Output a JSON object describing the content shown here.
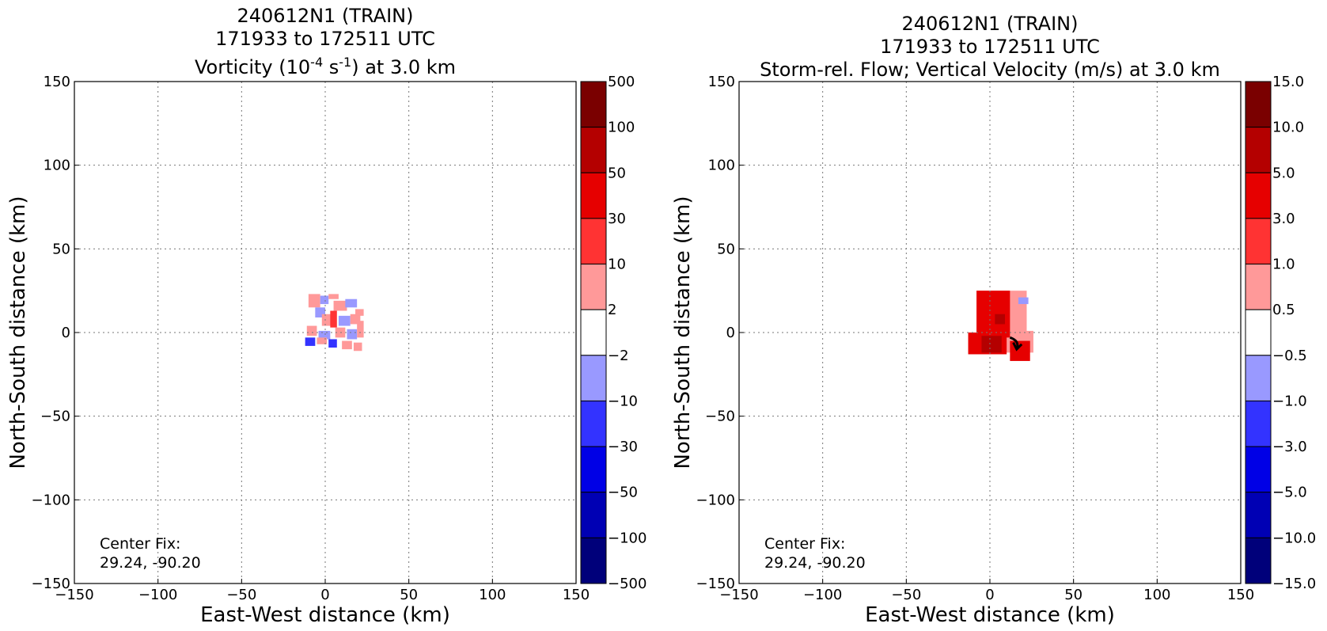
{
  "chart_data": [
    {
      "type": "heatmap",
      "title": "240612N1 (TRAIN)",
      "subtitle": "171933 to 172511 UTC",
      "field_title": {
        "prefix": "Vorticity (10",
        "sup1": "-4",
        "mid": " s",
        "sup2": "-1",
        "suffix": ") at 3.0 km"
      },
      "xlabel": "East-West distance (km)",
      "ylabel": "North-South distance (km)",
      "xlim": [
        -150,
        150
      ],
      "ylim": [
        -150,
        150
      ],
      "x_ticks": [
        "−150",
        "−100",
        "−50",
        "0",
        "50",
        "100",
        "150"
      ],
      "y_ticks": [
        "150",
        "100",
        "50",
        "0",
        "−50",
        "−100",
        "−150"
      ],
      "grid": true,
      "annotation": [
        "Center Fix:",
        "29.24, -90.20"
      ],
      "colorbar": {
        "labels": [
          "500",
          "100",
          "50",
          "30",
          "10",
          "2",
          "−2",
          "−10",
          "−30",
          "−50",
          "−100",
          "−500"
        ],
        "colors": [
          "#7a0000",
          "#b40000",
          "#e60000",
          "#ff3333",
          "#ff9999",
          "#ffffff",
          "#9999ff",
          "#3333ff",
          "#0000e6",
          "#0000b4",
          "#00007a"
        ]
      },
      "field_patches": [
        {
          "x": -10,
          "y": 15,
          "w": 7,
          "h": 8,
          "level": "2"
        },
        {
          "x": -6,
          "y": 9,
          "w": 6,
          "h": 6,
          "level": "-2"
        },
        {
          "x": -3,
          "y": 17,
          "w": 5,
          "h": 5,
          "level": "-2"
        },
        {
          "x": 2,
          "y": 20,
          "w": 6,
          "h": 3,
          "level": "2"
        },
        {
          "x": 5,
          "y": 13,
          "w": 8,
          "h": 6,
          "level": "2"
        },
        {
          "x": 12,
          "y": 15,
          "w": 7,
          "h": 5,
          "level": "-2"
        },
        {
          "x": -2,
          "y": 4,
          "w": 6,
          "h": 7,
          "level": "2"
        },
        {
          "x": 3,
          "y": 3,
          "w": 4,
          "h": 10,
          "level": "10"
        },
        {
          "x": 8,
          "y": 4,
          "w": 7,
          "h": 6,
          "level": "-2"
        },
        {
          "x": 15,
          "y": 5,
          "w": 6,
          "h": 6,
          "level": "2"
        },
        {
          "x": 18,
          "y": 10,
          "w": 5,
          "h": 4,
          "level": "2"
        },
        {
          "x": -11,
          "y": -2,
          "w": 6,
          "h": 6,
          "level": "2"
        },
        {
          "x": -4,
          "y": -4,
          "w": 7,
          "h": 5,
          "level": "-2"
        },
        {
          "x": 6,
          "y": -3,
          "w": 6,
          "h": 6,
          "level": "2"
        },
        {
          "x": 13,
          "y": -4,
          "w": 6,
          "h": 6,
          "level": "-2"
        },
        {
          "x": 19,
          "y": -3,
          "w": 4,
          "h": 10,
          "level": "2"
        },
        {
          "x": -12,
          "y": -8,
          "w": 6,
          "h": 5,
          "level": "-10"
        },
        {
          "x": -5,
          "y": -7,
          "w": 6,
          "h": 4,
          "level": "2"
        },
        {
          "x": 2,
          "y": -9,
          "w": 5,
          "h": 5,
          "level": "-10"
        },
        {
          "x": 10,
          "y": -10,
          "w": 6,
          "h": 5,
          "level": "2"
        },
        {
          "x": 17,
          "y": -11,
          "w": 5,
          "h": 5,
          "level": "2"
        }
      ]
    },
    {
      "type": "heatmap",
      "title": "240612N1 (TRAIN)",
      "subtitle": "171933 to 172511 UTC",
      "field_title": {
        "prefix": "Storm-rel. Flow; Vertical Velocity (m/s) at 3.0 km",
        "sup1": "",
        "mid": "",
        "sup2": "",
        "suffix": ""
      },
      "xlabel": "East-West distance (km)",
      "ylabel": "North-South distance (km)",
      "xlim": [
        -150,
        150
      ],
      "ylim": [
        -150,
        150
      ],
      "x_ticks": [
        "−150",
        "−100",
        "−50",
        "0",
        "50",
        "100",
        "150"
      ],
      "y_ticks": [
        "150",
        "100",
        "50",
        "0",
        "−50",
        "−100",
        "−150"
      ],
      "grid": true,
      "annotation": [
        "Center Fix:",
        "29.24, -90.20"
      ],
      "colorbar": {
        "labels": [
          "15.0",
          "10.0",
          "5.0",
          "3.0",
          "1.0",
          "0.5",
          "−0.5",
          "−1.0",
          "−3.0",
          "−5.0",
          "−10.0",
          "−15.0"
        ],
        "colors": [
          "#7a0000",
          "#b40000",
          "#e60000",
          "#ff3333",
          "#ff9999",
          "#ffffff",
          "#9999ff",
          "#3333ff",
          "#0000e6",
          "#0000b4",
          "#00007a"
        ]
      },
      "field_patches": [
        {
          "x": -8,
          "y": 0,
          "w": 30,
          "h": 25,
          "level": "2"
        },
        {
          "x": -8,
          "y": -12,
          "w": 34,
          "h": 13,
          "level": "2"
        },
        {
          "x": -8,
          "y": -3,
          "w": 20,
          "h": 28,
          "level": "3"
        },
        {
          "x": -13,
          "y": -13,
          "w": 23,
          "h": 13,
          "level": "3"
        },
        {
          "x": 12,
          "y": -17,
          "w": 12,
          "h": 12,
          "level": "3"
        },
        {
          "x": -5,
          "y": -12,
          "w": 12,
          "h": 10,
          "level": "5"
        },
        {
          "x": 3,
          "y": 5,
          "w": 6,
          "h": 6,
          "level": "5"
        },
        {
          "x": 17,
          "y": 17,
          "w": 6,
          "h": 4,
          "level": "-1"
        }
      ]
    }
  ]
}
